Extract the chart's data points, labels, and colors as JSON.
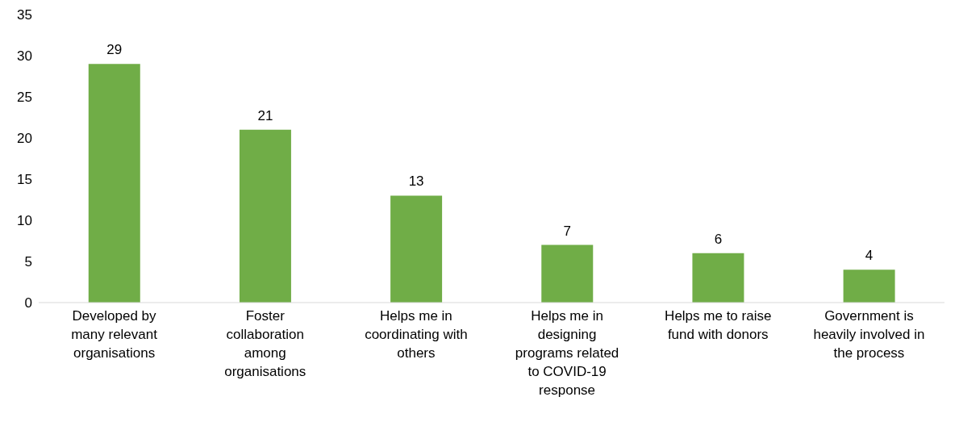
{
  "chart_data": {
    "type": "bar",
    "categories": [
      "Developed by\nmany relevant\norganisations",
      "Foster\ncollaboration\namong\norganisations",
      "Helps me in\ncoordinating with\nothers",
      "Helps me in\ndesigning\nprograms related\nto COVID-19\nresponse",
      "Helps me to raise\nfund with donors",
      "Government is\nheavily involved in\nthe process"
    ],
    "values": [
      29,
      21,
      13,
      7,
      6,
      4
    ],
    "color": "#70ad47",
    "ylim": [
      0,
      35
    ],
    "yticks": [
      0,
      5,
      10,
      15,
      20,
      25,
      30,
      35
    ],
    "data_labels": true,
    "grid": false
  }
}
